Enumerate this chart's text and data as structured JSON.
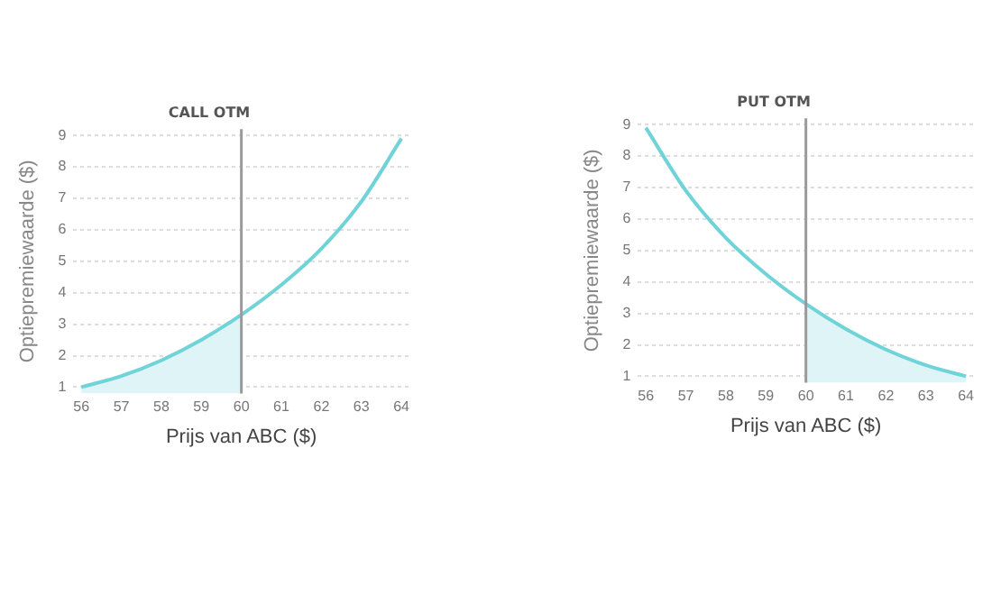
{
  "chart_data": [
    {
      "type": "line",
      "title": "CALL OTM",
      "xlabel": "Prijs van ABC ($)",
      "ylabel": "Optiepremiewaarde ($)",
      "x": [
        56,
        57,
        58,
        59,
        60,
        61,
        62,
        63,
        64
      ],
      "series": [
        {
          "type": "area",
          "color": "#dff4f6",
          "x": [
            56,
            57,
            58,
            59,
            60
          ],
          "values": [
            1.0,
            1.35,
            1.85,
            2.5,
            3.3
          ]
        },
        {
          "type": "line",
          "color": "#6fd3d8",
          "values": [
            1.0,
            1.35,
            1.85,
            2.5,
            3.3,
            4.25,
            5.4,
            6.9,
            8.9
          ]
        }
      ],
      "xlim": [
        55.8,
        64.2
      ],
      "ylim": [
        0.8,
        9.2
      ],
      "xticks": [
        56,
        57,
        58,
        59,
        60,
        61,
        62,
        63,
        64
      ],
      "yticks": [
        1,
        2,
        3,
        4,
        5,
        6,
        7,
        8,
        9
      ],
      "grid": "y",
      "marker": "none",
      "ref_lines": [
        {
          "axis": "x",
          "value": 60,
          "color": "#9a9a9a"
        }
      ]
    },
    {
      "type": "line",
      "title": "PUT OTM",
      "xlabel": "Prijs van ABC ($)",
      "ylabel": "Optiepremiewaarde ($)",
      "x": [
        56,
        57,
        58,
        59,
        60,
        61,
        62,
        63,
        64
      ],
      "series": [
        {
          "type": "area",
          "color": "#dff4f6",
          "x": [
            60,
            61,
            62,
            63,
            64
          ],
          "values": [
            3.3,
            2.5,
            1.85,
            1.35,
            1.0
          ]
        },
        {
          "type": "line",
          "color": "#6fd3d8",
          "values": [
            8.9,
            6.9,
            5.4,
            4.25,
            3.3,
            2.5,
            1.85,
            1.35,
            1.0
          ]
        }
      ],
      "xlim": [
        55.8,
        64.2
      ],
      "ylim": [
        0.8,
        9.2
      ],
      "xticks": [
        56,
        57,
        58,
        59,
        60,
        61,
        62,
        63,
        64
      ],
      "yticks": [
        1,
        2,
        3,
        4,
        5,
        6,
        7,
        8,
        9
      ],
      "grid": "y",
      "marker": "none",
      "ref_lines": [
        {
          "axis": "x",
          "value": 60,
          "color": "#9a9a9a"
        }
      ]
    }
  ]
}
